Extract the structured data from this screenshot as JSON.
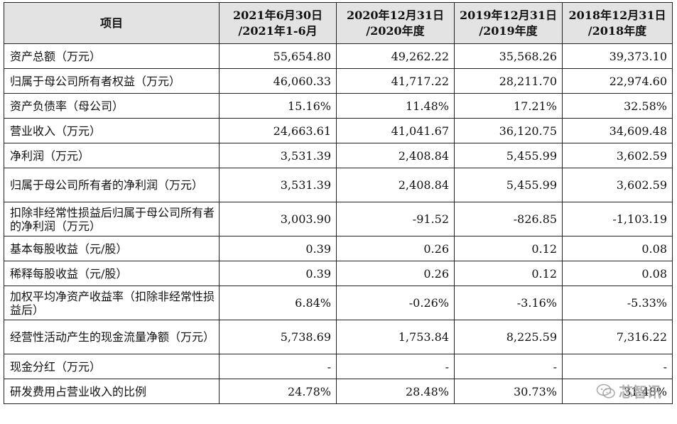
{
  "table": {
    "headers": [
      {
        "lines": [
          "项目"
        ]
      },
      {
        "lines": [
          "2021年6月30日",
          "/2021年1-6月"
        ]
      },
      {
        "lines": [
          "2020年12月31日",
          "/2020年度"
        ]
      },
      {
        "lines": [
          "2019年12月31日",
          "/2019年度"
        ]
      },
      {
        "lines": [
          "2018年12月31日",
          "/2018年度"
        ]
      }
    ],
    "rows": [
      {
        "label": "资产总额（万元）",
        "values": [
          "55,654.80",
          "49,262.22",
          "35,568.26",
          "39,373.10"
        ]
      },
      {
        "label": "归属于母公司所有者权益（万元）",
        "values": [
          "46,060.33",
          "41,717.22",
          "28,211.70",
          "22,974.60"
        ]
      },
      {
        "label": "资产负债率（母公司）",
        "values": [
          "15.16%",
          "11.48%",
          "17.21%",
          "32.58%"
        ]
      },
      {
        "label": "营业收入（万元）",
        "values": [
          "24,663.61",
          "41,041.67",
          "36,120.75",
          "34,609.48"
        ]
      },
      {
        "label": "净利润（万元）",
        "values": [
          "3,531.39",
          "2,408.84",
          "5,455.99",
          "3,602.59"
        ]
      },
      {
        "label": "归属于母公司所有者的净利润（万元）",
        "values": [
          "3,531.39",
          "2,408.84",
          "5,455.99",
          "3,602.59"
        ]
      },
      {
        "label": "扣除非经常性损益后归属于母公司所有者的净利润（万元）",
        "values": [
          "3,003.90",
          "-91.52",
          "-826.85",
          "-1,103.19"
        ]
      },
      {
        "label": "基本每股收益（元/股）",
        "values": [
          "0.39",
          "0.26",
          "0.12",
          "0.08"
        ]
      },
      {
        "label": "稀释每股收益（元/股）",
        "values": [
          "0.39",
          "0.26",
          "0.12",
          "0.08"
        ]
      },
      {
        "label": "加权平均净资产收益率（扣除非经常性损益后）",
        "values": [
          "6.84%",
          "-0.26%",
          "-3.16%",
          "-5.33%"
        ]
      },
      {
        "label": "经营性活动产生的现金流量净额（万元）",
        "values": [
          "5,738.69",
          "1,753.84",
          "8,225.59",
          "7,316.22"
        ]
      },
      {
        "label": "现金分红（万元）",
        "values": [
          "-",
          "-",
          "-",
          "-"
        ]
      },
      {
        "label": "研发费用占营业收入的比例",
        "values": [
          "24.78%",
          "28.48%",
          "30.73%",
          "31.48%"
        ]
      }
    ]
  },
  "watermark": {
    "text": "芯智讯",
    "icon": "wechat-icon"
  }
}
